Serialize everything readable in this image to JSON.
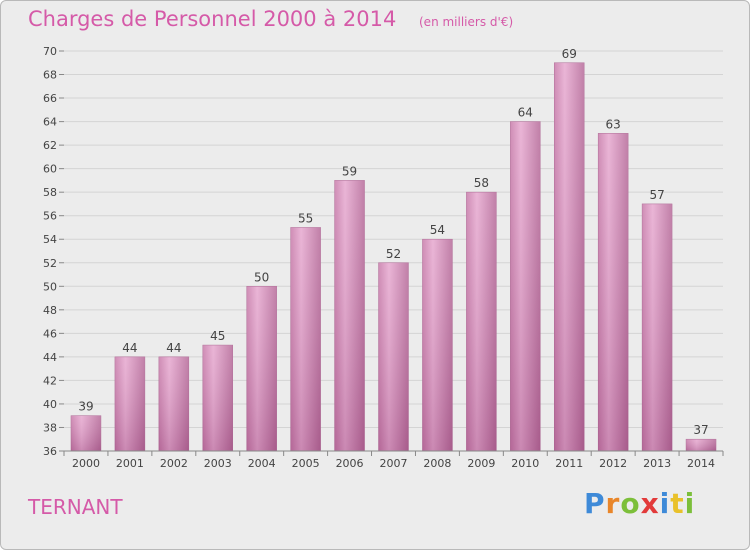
{
  "chart_data": {
    "type": "bar",
    "title": "Charges de Personnel 2000 à 2014",
    "subtitle": "(en milliers d'€)",
    "xlabel": "",
    "ylabel": "",
    "categories": [
      "2000",
      "2001",
      "2002",
      "2003",
      "2004",
      "2005",
      "2006",
      "2007",
      "2008",
      "2009",
      "2010",
      "2011",
      "2012",
      "2013",
      "2014"
    ],
    "values": [
      39,
      44,
      44,
      45,
      50,
      55,
      59,
      52,
      54,
      58,
      64,
      69,
      63,
      57,
      37
    ],
    "ylim": [
      36,
      70
    ],
    "yticks": [
      36,
      38,
      40,
      42,
      44,
      46,
      48,
      50,
      52,
      54,
      56,
      58,
      60,
      62,
      64,
      66,
      68,
      70
    ],
    "grid": true,
    "legend": "none",
    "bar_color": "#d98fbd"
  },
  "place_name": "TERNANT",
  "logo": {
    "letters": [
      {
        "char": "P",
        "color": "#3e8ad8"
      },
      {
        "char": "r",
        "color": "#e9862a"
      },
      {
        "char": "o",
        "color": "#7cbf3a"
      },
      {
        "char": "x",
        "color": "#e23a3a"
      },
      {
        "char": "i",
        "color": "#3e8ad8"
      },
      {
        "char": "t",
        "color": "#e9c12a"
      },
      {
        "char": "i",
        "color": "#7cbf3a"
      }
    ]
  }
}
